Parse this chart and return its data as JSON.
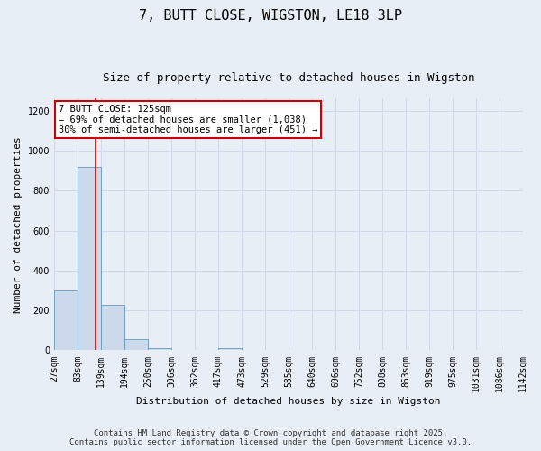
{
  "title": "7, BUTT CLOSE, WIGSTON, LE18 3LP",
  "subtitle": "Size of property relative to detached houses in Wigston",
  "xlabel": "Distribution of detached houses by size in Wigston",
  "ylabel": "Number of detached properties",
  "bin_edges": [
    27,
    83,
    139,
    194,
    250,
    306,
    362,
    417,
    473,
    529,
    585,
    640,
    696,
    752,
    808,
    863,
    919,
    975,
    1031,
    1086,
    1142
  ],
  "bar_heights": [
    300,
    920,
    230,
    55,
    10,
    0,
    0,
    10,
    0,
    0,
    0,
    0,
    0,
    0,
    0,
    0,
    0,
    0,
    0,
    0
  ],
  "bar_color": "#ccd9ea",
  "bar_edge_color": "#6699bb",
  "red_line_x": 125,
  "ylim": [
    0,
    1260
  ],
  "yticks": [
    0,
    200,
    400,
    600,
    800,
    1000,
    1200
  ],
  "annotation_line1": "7 BUTT CLOSE: 125sqm",
  "annotation_line2": "← 69% of detached houses are smaller (1,038)",
  "annotation_line3": "30% of semi-detached houses are larger (451) →",
  "annotation_box_color": "#ffffff",
  "annotation_box_edge": "#cc0000",
  "footer_line1": "Contains HM Land Registry data © Crown copyright and database right 2025.",
  "footer_line2": "Contains public sector information licensed under the Open Government Licence v3.0.",
  "background_color": "#e8eef5",
  "grid_color": "#d0d8e8",
  "title_fontsize": 11,
  "subtitle_fontsize": 9,
  "tick_fontsize": 7,
  "ylabel_fontsize": 8,
  "xlabel_fontsize": 8,
  "annotation_fontsize": 7.5,
  "footer_fontsize": 6.5
}
